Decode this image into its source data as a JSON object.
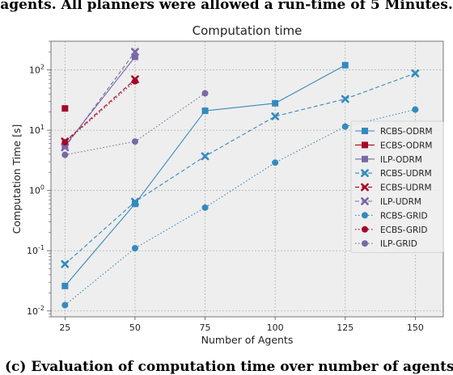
{
  "captions": {
    "top": "agents. All planners were allowed a run-time of 5 Minutes.",
    "bottom": "(c) Evaluation of computation time over number of agents"
  },
  "chart_data": {
    "type": "line",
    "title": "Computation time",
    "xlabel": "Number of Agents",
    "ylabel": "Computation Time [s]",
    "yscale": "log",
    "xlim": [
      20,
      160
    ],
    "ylim": [
      0.008,
      300
    ],
    "xticks": [
      25,
      50,
      75,
      100,
      125,
      150
    ],
    "yticks": [
      {
        "value": 0.01,
        "base": "10",
        "exp": "-2"
      },
      {
        "value": 0.1,
        "base": "10",
        "exp": "-1"
      },
      {
        "value": 1,
        "base": "10",
        "exp": "0"
      },
      {
        "value": 10,
        "base": "10",
        "exp": "1"
      },
      {
        "value": 100,
        "base": "10",
        "exp": "2"
      }
    ],
    "grid": true,
    "legend_position": "right",
    "series": [
      {
        "name": "RCBS-ODRM",
        "color": "#348ABD",
        "linestyle": "solid",
        "marker": "square",
        "x": [
          25,
          50,
          75,
          100,
          125
        ],
        "y": [
          0.026,
          0.6,
          21,
          28,
          120
        ]
      },
      {
        "name": "ECBS-ODRM",
        "color": "#A60628",
        "linestyle": "solid",
        "marker": "square",
        "x": [
          25
        ],
        "y": [
          23
        ]
      },
      {
        "name": "ILP-ODRM",
        "color": "#7A68A6",
        "linestyle": "solid",
        "marker": "square",
        "x": [
          25,
          50
        ],
        "y": [
          5.5,
          165
        ]
      },
      {
        "name": "RCBS-UDRM",
        "color": "#348ABD",
        "linestyle": "dashed",
        "marker": "x",
        "x": [
          25,
          50,
          75,
          100,
          125,
          150
        ],
        "y": [
          0.06,
          0.65,
          3.7,
          17,
          33,
          88
        ]
      },
      {
        "name": "ECBS-UDRM",
        "color": "#A60628",
        "linestyle": "dashed",
        "marker": "x",
        "x": [
          25,
          50
        ],
        "y": [
          6.5,
          70
        ]
      },
      {
        "name": "ILP-UDRM",
        "color": "#7A68A6",
        "linestyle": "dashed",
        "marker": "x",
        "x": [
          25,
          50
        ],
        "y": [
          5.2,
          200
        ]
      },
      {
        "name": "RCBS-GRID",
        "color": "#348ABD",
        "linestyle": "dotted",
        "marker": "circle",
        "x": [
          25,
          50,
          75,
          100,
          125,
          150
        ],
        "y": [
          0.0125,
          0.11,
          0.52,
          2.9,
          11.5,
          22
        ]
      },
      {
        "name": "ECBS-GRID",
        "color": "#A60628",
        "linestyle": "dotted",
        "marker": "circle",
        "x": [
          25,
          50
        ],
        "y": [
          6.3,
          65
        ]
      },
      {
        "name": "ILP-GRID",
        "color": "#7A68A6",
        "linestyle": "dotted",
        "marker": "circle",
        "x": [
          25,
          50,
          75
        ],
        "y": [
          3.9,
          6.5,
          41
        ]
      }
    ]
  }
}
